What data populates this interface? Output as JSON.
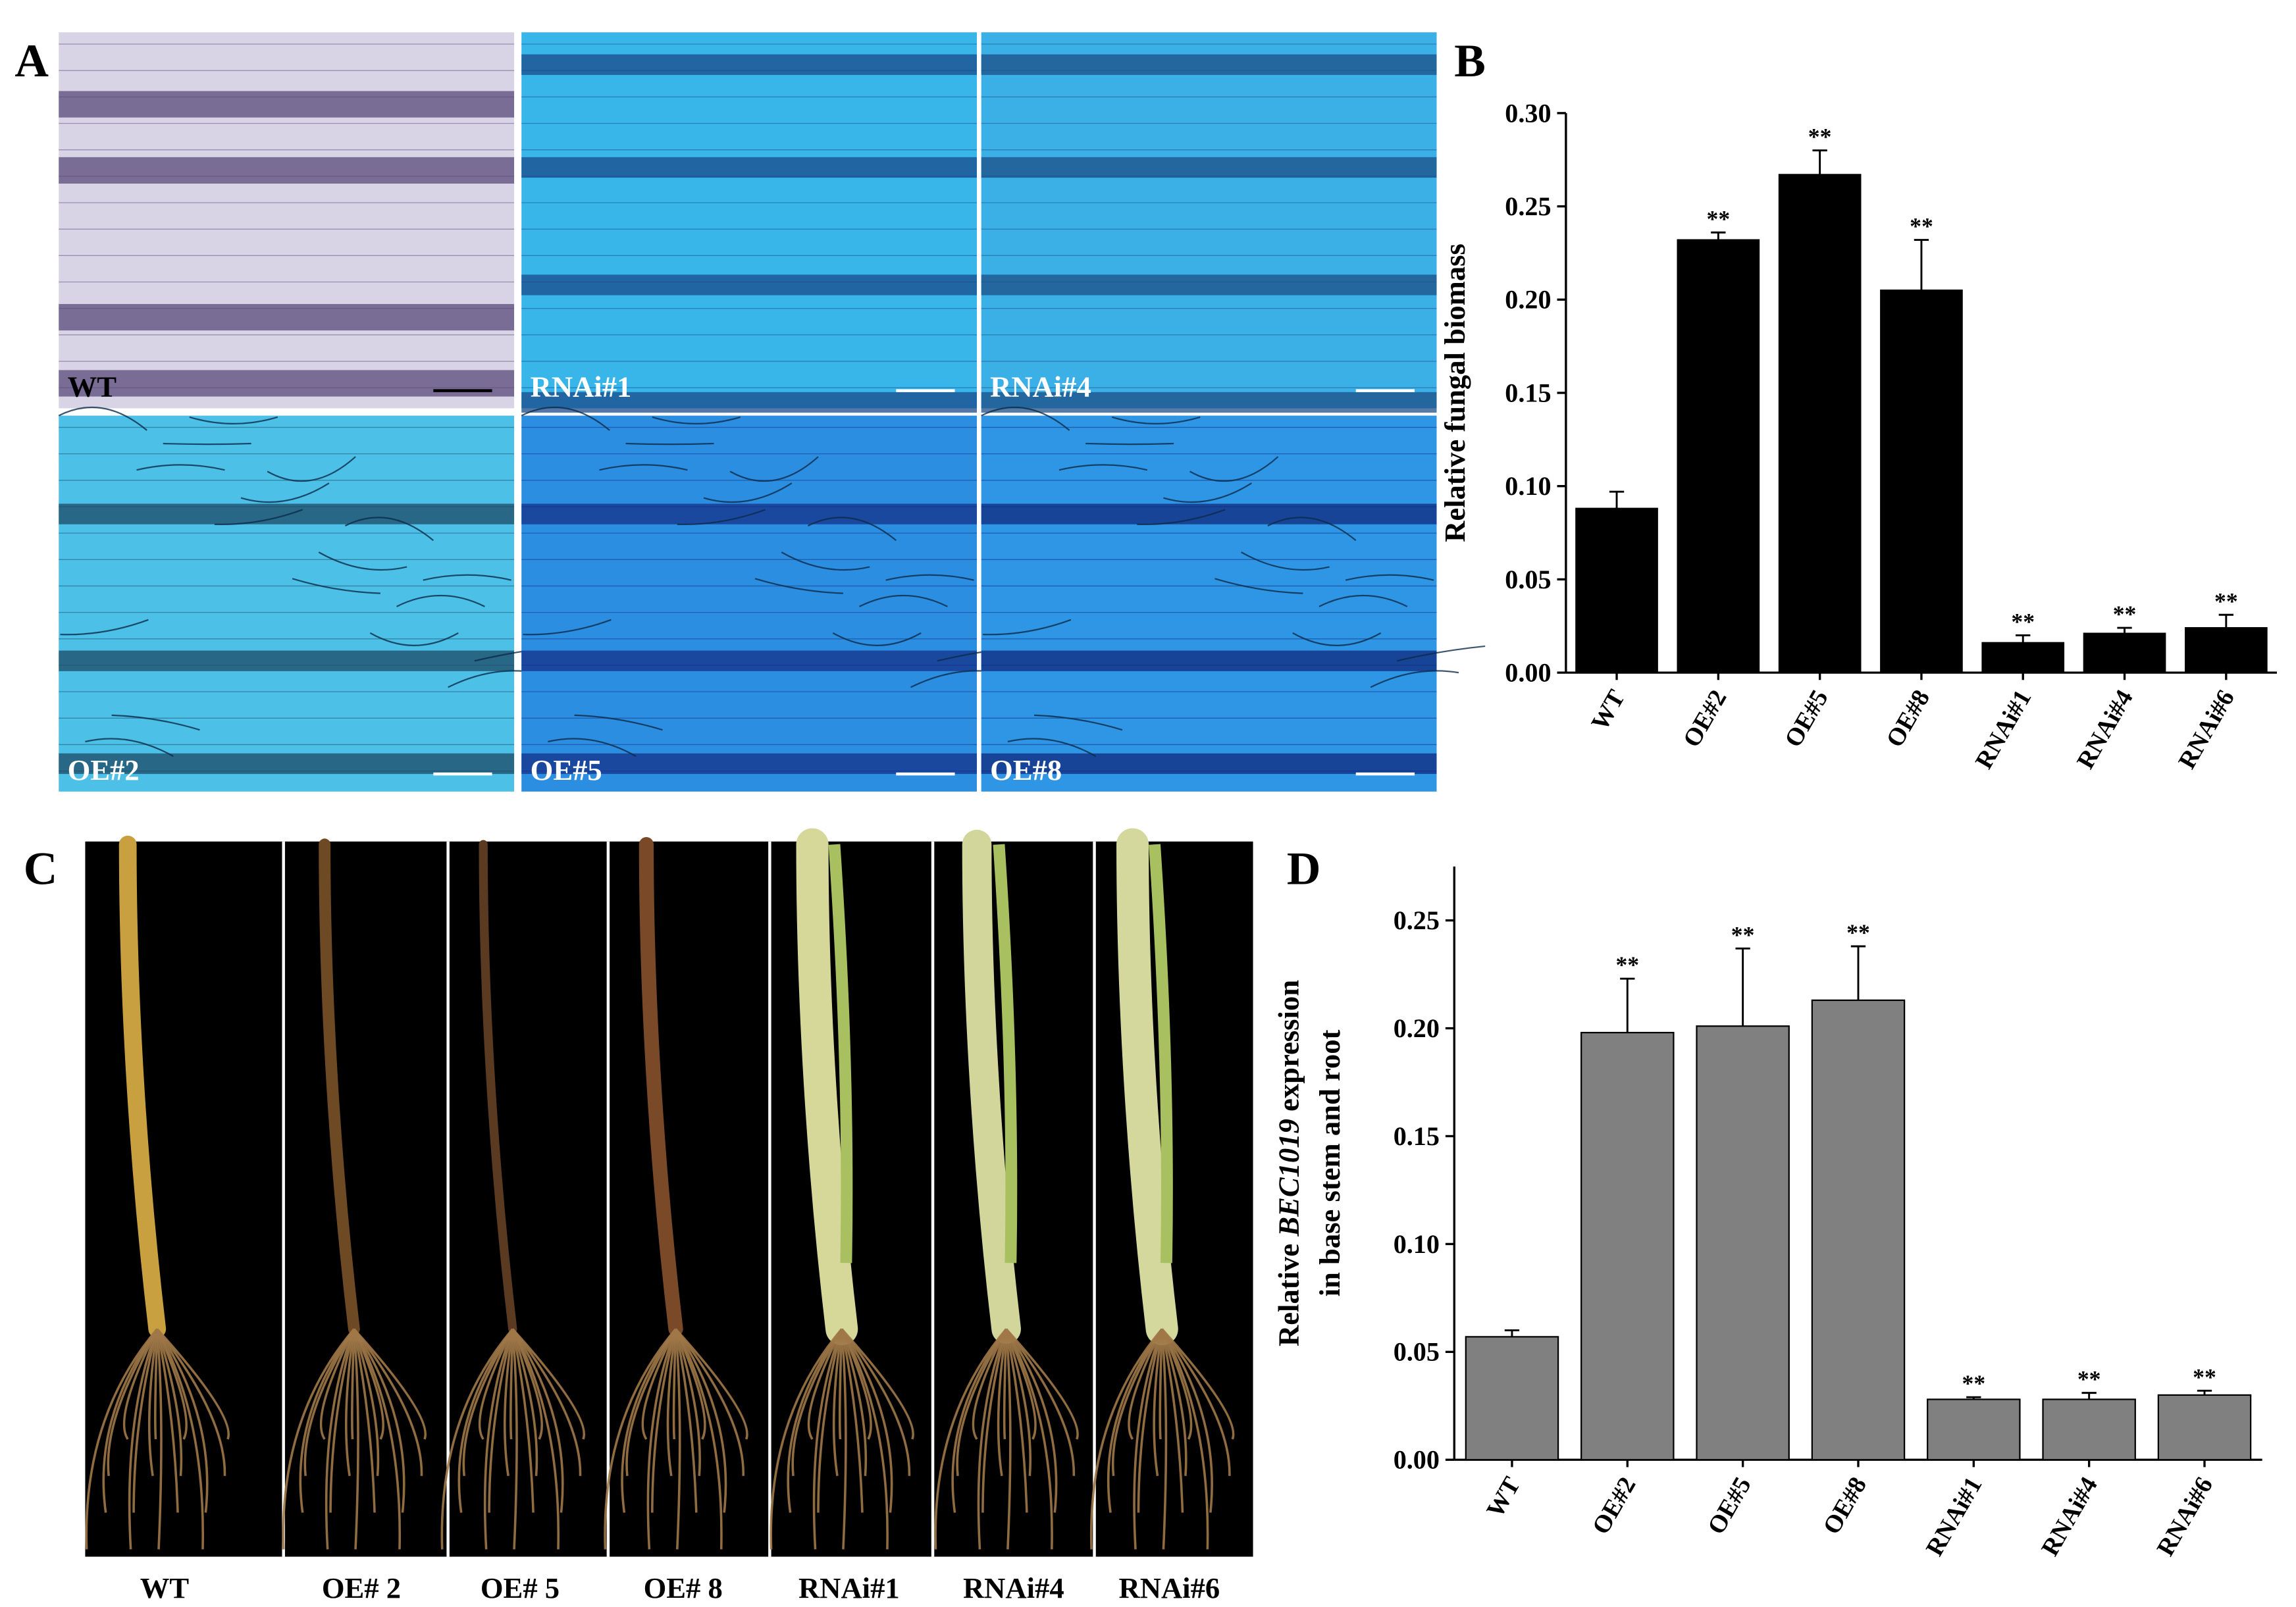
{
  "panel_letters": [
    "A",
    "B",
    "C",
    "D"
  ],
  "photo_panels": {
    "A_labels": [
      "WT",
      "RNAi#1",
      "RNAi#4",
      "OE#2",
      "OE#5",
      "OE#8"
    ],
    "C_labels": [
      "WT",
      "OE# 2",
      "OE# 5",
      "OE# 8",
      "RNAi#1",
      "RNAi#4",
      "RNAi#6"
    ]
  },
  "chart_data": [
    {
      "type": "bar",
      "ylabel": [
        [
          "Relative fungal biomass"
        ]
      ],
      "categories": [
        "WT",
        "OE#2",
        "OE#5",
        "OE#8",
        "RNAi#1",
        "RNAi#4",
        "RNAi#6"
      ],
      "values": [
        0.088,
        0.232,
        0.267,
        0.205,
        0.016,
        0.021,
        0.024
      ],
      "errors": [
        0.009,
        0.004,
        0.013,
        0.027,
        0.004,
        0.003,
        0.007
      ],
      "significance": [
        null,
        "**",
        "**",
        "**",
        "**",
        "**",
        "**"
      ],
      "color": "#000000",
      "ylim": [
        0,
        0.3
      ],
      "yticks": [
        {
          "value": 0,
          "label": "0.00"
        },
        {
          "value": 0.05,
          "label": "0.05"
        },
        {
          "value": 0.1,
          "label": "0.10"
        },
        {
          "value": 0.15,
          "label": "0.15"
        },
        {
          "value": 0.2,
          "label": "0.20"
        },
        {
          "value": 0.25,
          "label": "0.25"
        },
        {
          "value": 0.3,
          "label": "0.30"
        }
      ]
    },
    {
      "type": "bar",
      "ylabel": [
        [
          "Relative ",
          "BEC1019",
          " expression"
        ],
        [
          "in base stem and root"
        ]
      ],
      "categories": [
        "WT",
        "OE#2",
        "OE#5",
        "OE#8",
        "RNAi#1",
        "RNAi#4",
        "RNAi#6"
      ],
      "values": [
        0.057,
        0.198,
        0.201,
        0.213,
        0.028,
        0.028,
        0.03
      ],
      "errors": [
        0.003,
        0.025,
        0.036,
        0.025,
        0.001,
        0.003,
        0.002
      ],
      "significance": [
        null,
        "**",
        "**",
        "**",
        "**",
        "**",
        "**"
      ],
      "color": "#808080",
      "ylim": [
        0,
        0.275
      ],
      "yticks": [
        {
          "value": 0,
          "label": "0.00"
        },
        {
          "value": 0.05,
          "label": "0.05"
        },
        {
          "value": 0.1,
          "label": "0.10"
        },
        {
          "value": 0.15,
          "label": "0.15"
        },
        {
          "value": 0.2,
          "label": "0.20"
        },
        {
          "value": 0.25,
          "label": "0.25"
        }
      ]
    }
  ]
}
